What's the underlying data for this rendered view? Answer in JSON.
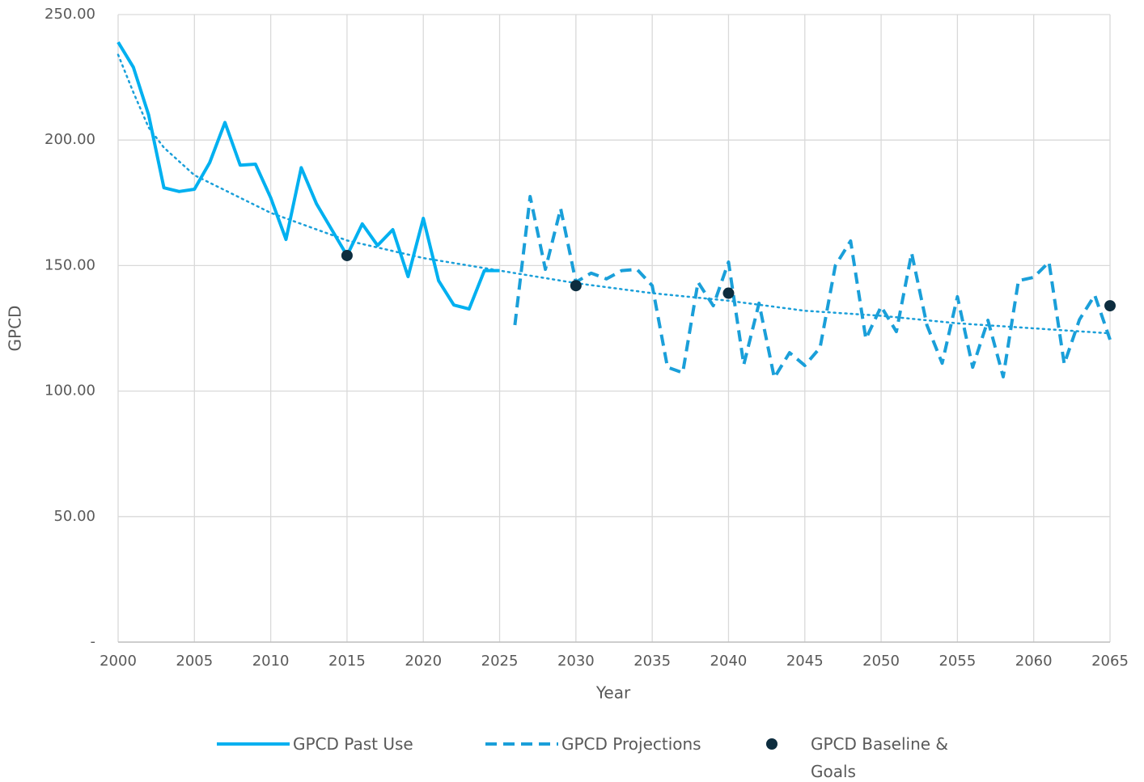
{
  "chart_data": {
    "type": "line",
    "x_label": "Year",
    "y_label": "GPCD",
    "xlim": [
      2000,
      2065
    ],
    "ylim": [
      0,
      250
    ],
    "xticks": [
      2000,
      2005,
      2010,
      2015,
      2020,
      2025,
      2030,
      2035,
      2040,
      2045,
      2050,
      2055,
      2060,
      2065
    ],
    "yticks": [
      {
        "value": 0,
        "label": "-"
      },
      {
        "value": 50,
        "label": "50.00"
      },
      {
        "value": 100,
        "label": "100.00"
      },
      {
        "value": 150,
        "label": "150.00"
      },
      {
        "value": 200,
        "label": "200.00"
      },
      {
        "value": 250,
        "label": "250.00"
      }
    ],
    "grid": true,
    "legend": "bottom",
    "series": [
      {
        "name": "GPCD Past Use",
        "color": "#00b0f0",
        "style": "solid",
        "x": [
          2000,
          2001,
          2002,
          2003,
          2004,
          2005,
          2006,
          2007,
          2008,
          2009,
          2010,
          2011,
          2012,
          2013,
          2014,
          2015,
          2016,
          2017,
          2018,
          2019,
          2020,
          2021,
          2022,
          2023,
          2024,
          2025
        ],
        "values": [
          239,
          229,
          210,
          181,
          179.5,
          180.4,
          191,
          207,
          190,
          190.4,
          177,
          160.4,
          189,
          174.6,
          164.3,
          154,
          166.6,
          158,
          164.3,
          145.6,
          168.8,
          144,
          134.3,
          132.7,
          148,
          148
        ]
      },
      {
        "name": "GPCD Projections",
        "color": "#1a9fd9",
        "style": "dashed",
        "x": [
          2026,
          2027,
          2028,
          2029,
          2030,
          2031,
          2032,
          2033,
          2034,
          2035,
          2036,
          2037,
          2038,
          2039,
          2040,
          2041,
          2042,
          2043,
          2044,
          2045,
          2046,
          2047,
          2048,
          2049,
          2050,
          2051,
          2052,
          2053,
          2054,
          2055,
          2056,
          2057,
          2058,
          2059,
          2060,
          2061,
          2062,
          2063,
          2064,
          2065
        ],
        "values": [
          126.3,
          177.5,
          148.5,
          172.7,
          143.4,
          147,
          144.7,
          148,
          148.5,
          142,
          109.5,
          107.3,
          143.4,
          134,
          151.4,
          110.5,
          135,
          105.3,
          115.3,
          110.2,
          117.3,
          150,
          159.8,
          120.8,
          133.7,
          123.7,
          155,
          126.3,
          111.1,
          137.6,
          109.5,
          128.2,
          105.7,
          144,
          145.3,
          151.4,
          110.8,
          128.5,
          138.2,
          120.5
        ]
      },
      {
        "name": "GPCD Baseline & Goals",
        "color": "#0d2d3f",
        "style": "marker",
        "x": [
          2015,
          2030,
          2040,
          2065
        ],
        "values": [
          154,
          142,
          139,
          134
        ]
      },
      {
        "color": "#1a9fd9",
        "style": "dotted",
        "x": [
          2000,
          2001,
          2002,
          2003,
          2005,
          2010,
          2015,
          2020,
          2025,
          2030,
          2035,
          2040,
          2045,
          2050,
          2055,
          2060,
          2065
        ],
        "values": [
          234,
          219,
          205,
          197,
          186,
          171,
          160,
          153,
          148,
          143,
          139,
          136,
          132,
          130,
          127,
          125,
          123
        ]
      }
    ]
  }
}
